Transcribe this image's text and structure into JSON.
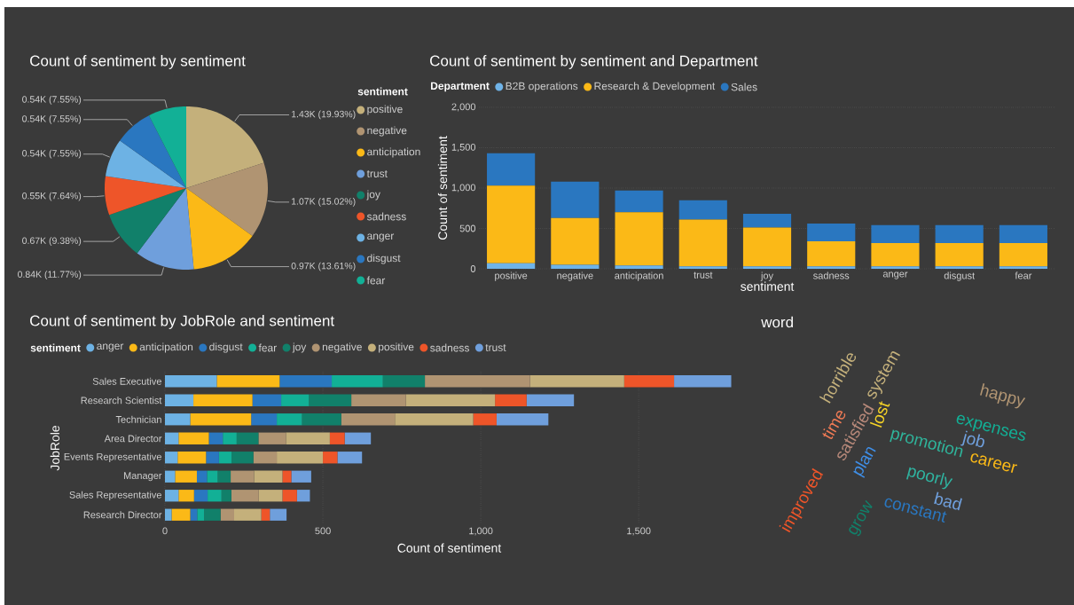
{
  "chart_data": [
    {
      "type": "pie",
      "title": "Count of sentiment by sentiment",
      "legend_title": "sentiment",
      "legend": "right",
      "categories": [
        "positive",
        "negative",
        "anticipation",
        "trust",
        "joy",
        "sadness",
        "anger",
        "disgust",
        "fear"
      ],
      "values": [
        1430,
        1070,
        970,
        840,
        670,
        550,
        540,
        540,
        540
      ],
      "colors": [
        "#c4b07b",
        "#b09472",
        "#fbb917",
        "#6f9fdc",
        "#11806a",
        "#ee5529",
        "#6db2e4",
        "#2a77c0",
        "#12b096"
      ],
      "value_labels": [
        "1.43K (19.93%)",
        "1.07K (15.02%)",
        "0.97K (13.61%)",
        "0.84K (11.77%)",
        "0.67K (9.38%)",
        "0.55K (7.64%)",
        "0.54K (7.55%)",
        "0.54K (7.55%)",
        "0.54K (7.55%)"
      ]
    },
    {
      "type": "bar",
      "stacked": true,
      "title": "Count of sentiment by sentiment and Department",
      "xlabel": "sentiment",
      "ylabel": "Count of sentiment",
      "legend_title": "Department",
      "legend": "top",
      "grid": "y",
      "categories": [
        "positive",
        "negative",
        "anticipation",
        "trust",
        "joy",
        "sadness",
        "anger",
        "disgust",
        "fear"
      ],
      "series": [
        {
          "name": "B2B operations",
          "color": "#6fb3e8",
          "values": [
            70,
            50,
            40,
            30,
            30,
            30,
            30,
            30,
            30
          ]
        },
        {
          "name": "Research & Development",
          "color": "#fbb917",
          "values": [
            960,
            580,
            660,
            580,
            480,
            310,
            290,
            290,
            290
          ]
        },
        {
          "name": "Sales",
          "color": "#2a77c0",
          "values": [
            400,
            450,
            270,
            240,
            170,
            220,
            220,
            220,
            220
          ]
        }
      ],
      "ylim": [
        0,
        2000
      ],
      "yticks": [
        0,
        500,
        {
          "value": 1000,
          "label": "1,000"
        },
        {
          "value": 1500,
          "label": "1,500"
        },
        {
          "value": 2000,
          "label": "2,000"
        }
      ]
    },
    {
      "type": "bar",
      "stacked": true,
      "orientation": "horizontal",
      "title": "Count of sentiment by JobRole and sentiment",
      "xlabel": "Count of sentiment",
      "ylabel": "JobRole",
      "legend_title": "sentiment",
      "legend": "top",
      "grid": "x",
      "categories": [
        "Sales Executive",
        "Research Scientist",
        "Technician",
        "Area Director",
        "Events Representative",
        "Manager",
        "Sales Representative",
        "Research Director"
      ],
      "series": [
        {
          "name": "anger",
          "color": "#6db2e4",
          "values": [
            164,
            90,
            80,
            43,
            40,
            32,
            43,
            21
          ]
        },
        {
          "name": "anticipation",
          "color": "#fbb917",
          "values": [
            199,
            187,
            193,
            96,
            90,
            69,
            49,
            59
          ]
        },
        {
          "name": "disgust",
          "color": "#2a77c0",
          "values": [
            165,
            91,
            81,
            44,
            41,
            32,
            43,
            22
          ]
        },
        {
          "name": "fear",
          "color": "#12b096",
          "values": [
            162,
            88,
            80,
            44,
            40,
            34,
            44,
            22
          ]
        },
        {
          "name": "joy",
          "color": "#11806a",
          "values": [
            133,
            134,
            124,
            69,
            69,
            41,
            31,
            52
          ]
        },
        {
          "name": "negative",
          "color": "#b09472",
          "values": [
            333,
            173,
            170,
            87,
            74,
            74,
            87,
            43
          ]
        },
        {
          "name": "positive",
          "color": "#c4b07b",
          "values": [
            298,
            282,
            248,
            139,
            146,
            90,
            75,
            86
          ]
        },
        {
          "name": "sadness",
          "color": "#ee5529",
          "values": [
            158,
            100,
            74,
            47,
            46,
            28,
            46,
            27
          ]
        },
        {
          "name": "trust",
          "color": "#6f9fdc",
          "values": [
            181,
            150,
            164,
            83,
            78,
            63,
            41,
            53
          ]
        }
      ],
      "xlim": [
        0,
        1800
      ],
      "xticks": [
        0,
        500,
        {
          "value": 1000,
          "label": "1,000"
        },
        {
          "value": 1500,
          "label": "1,500"
        }
      ]
    },
    {
      "type": "other",
      "title": "word",
      "annotations": [
        "horrible",
        "system",
        "happy",
        "time",
        "satisfied",
        "lost",
        "expenses",
        "promotion",
        "job",
        "plan",
        "career",
        "poorly",
        "improved",
        "bad",
        "constant",
        "grow"
      ],
      "colors": [
        "#c4b07b",
        "#c4b07b",
        "#b09472",
        "#ee7a55",
        "#b8897a",
        "#f5d327",
        "#12b096",
        "#2fb39a",
        "#6f9fdc",
        "#3f8fe8",
        "#fbb917",
        "#2fb3a0",
        "#ee5529",
        "#6f9fdc",
        "#2a77c0",
        "#11806a"
      ]
    }
  ]
}
